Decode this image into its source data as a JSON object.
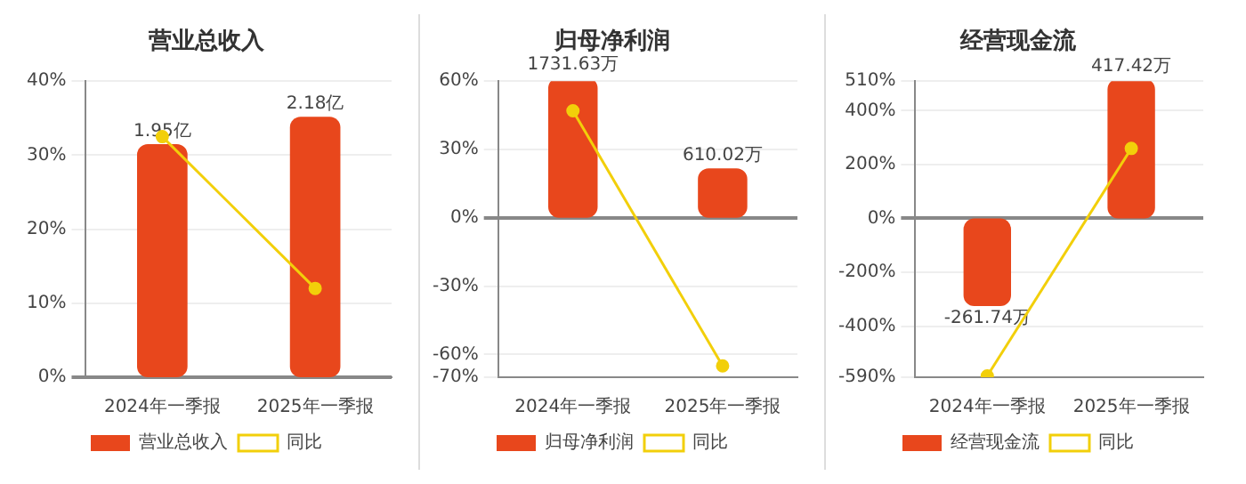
{
  "chart_data": [
    {
      "type": "bar",
      "title": "营业总收入",
      "categories": [
        "2024年一季报",
        "2025年一季报"
      ],
      "series": [
        {
          "name": "营业总收入",
          "axis": "y2",
          "color": "#e8471c",
          "values": [
            1.95,
            2.18
          ],
          "value_labels": [
            "1.95亿",
            "2.18亿"
          ]
        },
        {
          "name": "同比",
          "type": "line",
          "color": "#f2cf0a",
          "values": [
            32.5,
            12
          ]
        }
      ],
      "ylim": [
        0,
        40
      ],
      "yticks": [
        {
          "value": 0,
          "label": "0%"
        },
        {
          "value": 10,
          "label": "10%"
        },
        {
          "value": 20,
          "label": "20%"
        },
        {
          "value": 30,
          "label": "30%"
        },
        {
          "value": 40,
          "label": "40%"
        }
      ],
      "grid": "y",
      "legend": "bottom",
      "marker": "circle"
    },
    {
      "type": "bar",
      "title": "归母净利润",
      "categories": [
        "2024年一季报",
        "2025年一季报"
      ],
      "series": [
        {
          "name": "归母净利润",
          "axis": "y2",
          "color": "#e8471c",
          "values": [
            1731.63,
            610.02
          ],
          "value_labels": [
            "1731.63万",
            "610.02万"
          ]
        },
        {
          "name": "同比",
          "type": "line",
          "color": "#f2cf0a",
          "values": [
            47,
            -65
          ]
        }
      ],
      "ylim": [
        -70,
        60
      ],
      "yticks": [
        {
          "value": -70,
          "label": "-70%"
        },
        {
          "value": -60,
          "label": "-60%"
        },
        {
          "value": -30,
          "label": "-30%"
        },
        {
          "value": 0,
          "label": "0%"
        },
        {
          "value": 30,
          "label": "30%"
        },
        {
          "value": 60,
          "label": "60%"
        }
      ],
      "grid": "y",
      "legend": "bottom",
      "marker": "circle"
    },
    {
      "type": "bar",
      "title": "经营现金流",
      "categories": [
        "2024年一季报",
        "2025年一季报"
      ],
      "series": [
        {
          "name": "经营现金流",
          "axis": "y2",
          "color": "#e8471c",
          "values": [
            -261.74,
            417.42
          ],
          "value_labels": [
            "-261.74万",
            "417.42万"
          ]
        },
        {
          "name": "同比",
          "type": "line",
          "color": "#f2cf0a",
          "values": [
            -585,
            260
          ]
        }
      ],
      "ylim": [
        -590,
        510
      ],
      "yticks": [
        {
          "value": -590,
          "label": "-590%"
        },
        {
          "value": -400,
          "label": "-400%"
        },
        {
          "value": -200,
          "label": "-200%"
        },
        {
          "value": 0,
          "label": "0%"
        },
        {
          "value": 200,
          "label": "200%"
        },
        {
          "value": 400,
          "label": "400%"
        },
        {
          "value": 510,
          "label": "510%"
        }
      ],
      "grid": "y",
      "legend": "bottom",
      "marker": "circle"
    }
  ]
}
